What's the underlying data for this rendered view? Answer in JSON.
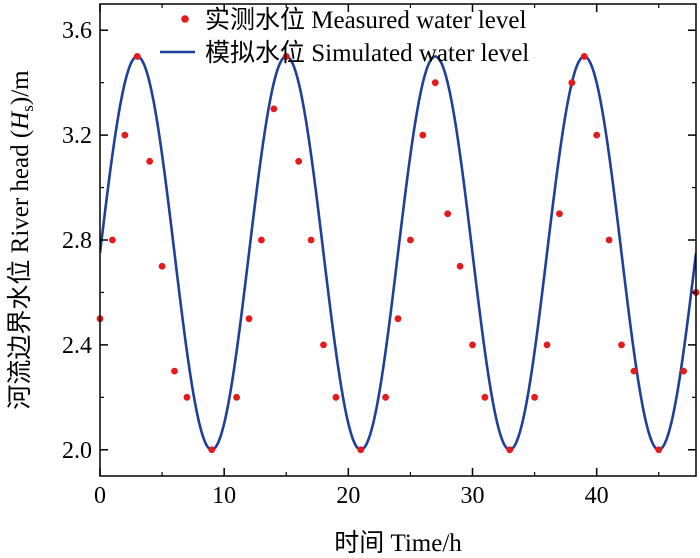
{
  "chart_data": {
    "type": "line",
    "xlabel": "时间 Time/h",
    "ylabel_prefix": "河流边界水位 River head (",
    "ylabel_var": "H",
    "ylabel_sub": "s",
    "ylabel_suffix": ")/m",
    "xlim": [
      0,
      48
    ],
    "ylim": [
      1.9,
      3.7
    ],
    "xticks": [
      0,
      10,
      20,
      30,
      40
    ],
    "xtick_labels": [
      "0",
      "10",
      "20",
      "30",
      "40"
    ],
    "yticks": [
      2.0,
      2.4,
      2.8,
      3.2,
      3.6
    ],
    "ytick_labels": [
      "2.0",
      "2.4",
      "2.8",
      "3.2",
      "3.6"
    ],
    "legend_position": "top-right",
    "series": [
      {
        "name": "实测水位 Measured water level",
        "kind": "scatter",
        "color": "#e41a1c",
        "x": [
          0,
          1,
          2,
          3,
          4,
          5,
          6,
          7,
          9,
          11,
          12,
          13,
          14,
          15,
          16,
          17,
          18,
          19,
          21,
          23,
          24,
          25,
          26,
          27,
          28,
          29,
          30,
          31,
          33,
          35,
          36,
          37,
          38,
          39,
          40,
          41,
          42,
          43,
          45,
          47,
          48
        ],
        "y": [
          2.5,
          2.8,
          3.2,
          3.5,
          3.1,
          2.7,
          2.3,
          2.2,
          2.0,
          2.2,
          2.5,
          2.8,
          3.3,
          3.5,
          3.1,
          2.8,
          2.4,
          2.2,
          2.0,
          2.2,
          2.5,
          2.8,
          3.2,
          3.4,
          2.9,
          2.7,
          2.4,
          2.2,
          2.0,
          2.2,
          2.4,
          2.9,
          3.4,
          3.5,
          3.2,
          2.8,
          2.4,
          2.3,
          2.0,
          2.3,
          2.6
        ]
      },
      {
        "name": "模拟水位 Simulated water level",
        "kind": "line",
        "color": "#1f3f9a",
        "model": {
          "mean": 2.75,
          "amplitude": 0.75,
          "period": 12,
          "peak_at": 3
        }
      }
    ]
  }
}
